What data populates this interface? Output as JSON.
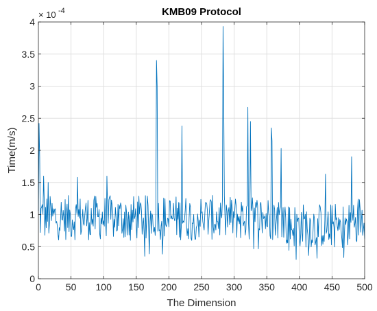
{
  "chart_data": {
    "type": "line",
    "title": "KMB09 Protocol",
    "xlabel": "The Dimension",
    "ylabel": "Time(m/s)",
    "y_exponent_label": "× 10",
    "y_exponent_power": "-4",
    "xlim": [
      0,
      500
    ],
    "ylim": [
      0,
      4
    ],
    "xticks": [
      0,
      50,
      100,
      150,
      200,
      250,
      300,
      350,
      400,
      450,
      500
    ],
    "yticks": [
      0,
      0.5,
      1,
      1.5,
      2,
      2.5,
      3,
      3.5,
      4
    ],
    "ytick_labels": [
      "0",
      "0.5",
      "1",
      "1.5",
      "2",
      "2.5",
      "3",
      "3.5",
      "4"
    ],
    "grid": true,
    "line_color": "#0072bd",
    "base_level": 0.95,
    "noise_amplitude": 0.35,
    "spikes": [
      {
        "x": 1,
        "y": 2.42
      },
      {
        "x": 2,
        "y": 1.9
      },
      {
        "x": 8,
        "y": 1.6
      },
      {
        "x": 15,
        "y": 1.5
      },
      {
        "x": 60,
        "y": 1.58
      },
      {
        "x": 105,
        "y": 1.6
      },
      {
        "x": 181,
        "y": 3.4
      },
      {
        "x": 182,
        "y": 3.0
      },
      {
        "x": 220,
        "y": 2.38
      },
      {
        "x": 283,
        "y": 3.93
      },
      {
        "x": 284,
        "y": 2.75
      },
      {
        "x": 321,
        "y": 2.67
      },
      {
        "x": 325,
        "y": 2.45
      },
      {
        "x": 357,
        "y": 2.35
      },
      {
        "x": 358,
        "y": 2.15
      },
      {
        "x": 372,
        "y": 2.03
      },
      {
        "x": 440,
        "y": 1.63
      },
      {
        "x": 480,
        "y": 1.9
      }
    ],
    "dips": [
      {
        "x": 395,
        "y": 0.3
      },
      {
        "x": 468,
        "y": 0.33
      },
      {
        "x": 163,
        "y": 0.35
      }
    ]
  }
}
